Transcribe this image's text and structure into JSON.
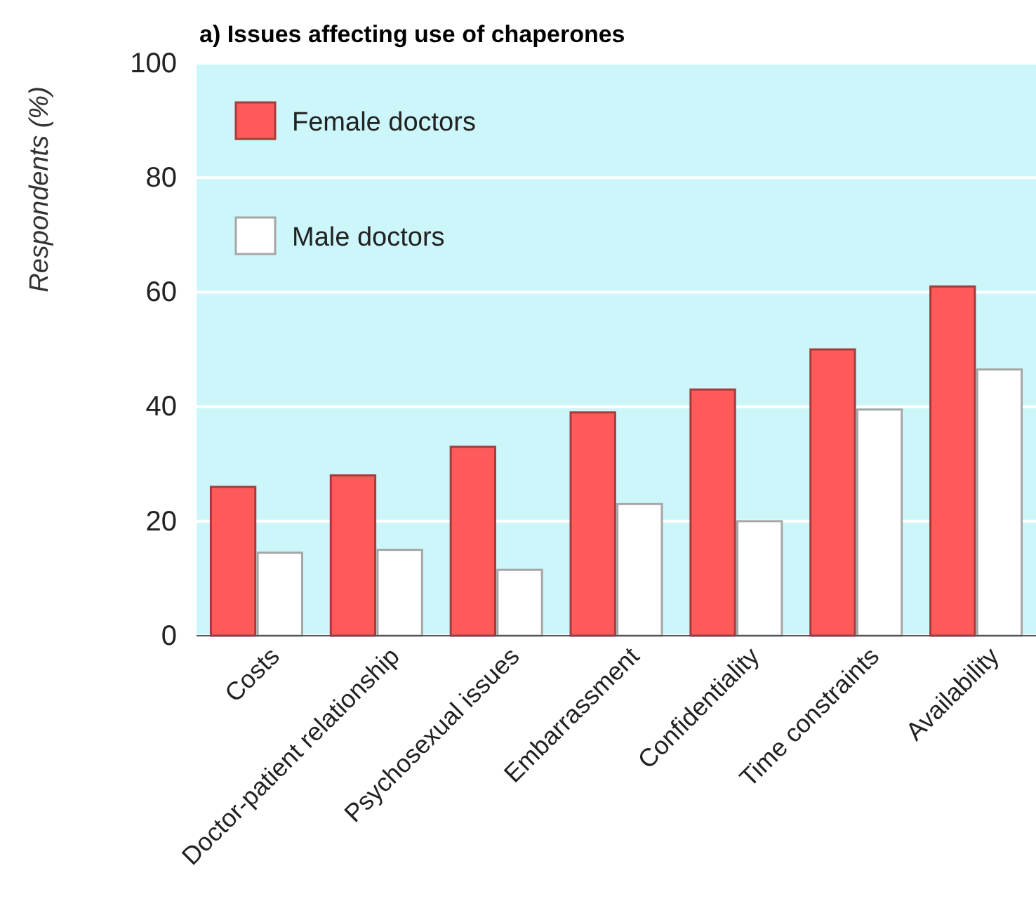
{
  "chart_data": {
    "type": "bar",
    "title": "a) Issues affecting use of chaperones",
    "ylabel": "Respondents (%)",
    "categories": [
      "Costs",
      "Doctor-patient relationship",
      "Psychosexual issues",
      "Embarrassment",
      "Confidentiality",
      "Time constraints",
      "Availability"
    ],
    "series": [
      {
        "name": "Female doctors",
        "color": "#ff5a5a",
        "values": [
          26,
          28,
          33,
          39,
          43,
          50,
          61
        ]
      },
      {
        "name": "Male doctors",
        "color": "#ffffff",
        "values": [
          14.5,
          15,
          11.5,
          23,
          20,
          39.5,
          46.5
        ]
      }
    ],
    "ylim": [
      0,
      100
    ],
    "yticks": [
      0,
      20,
      40,
      60,
      80,
      100
    ],
    "grid": "y",
    "legend": "top left"
  }
}
